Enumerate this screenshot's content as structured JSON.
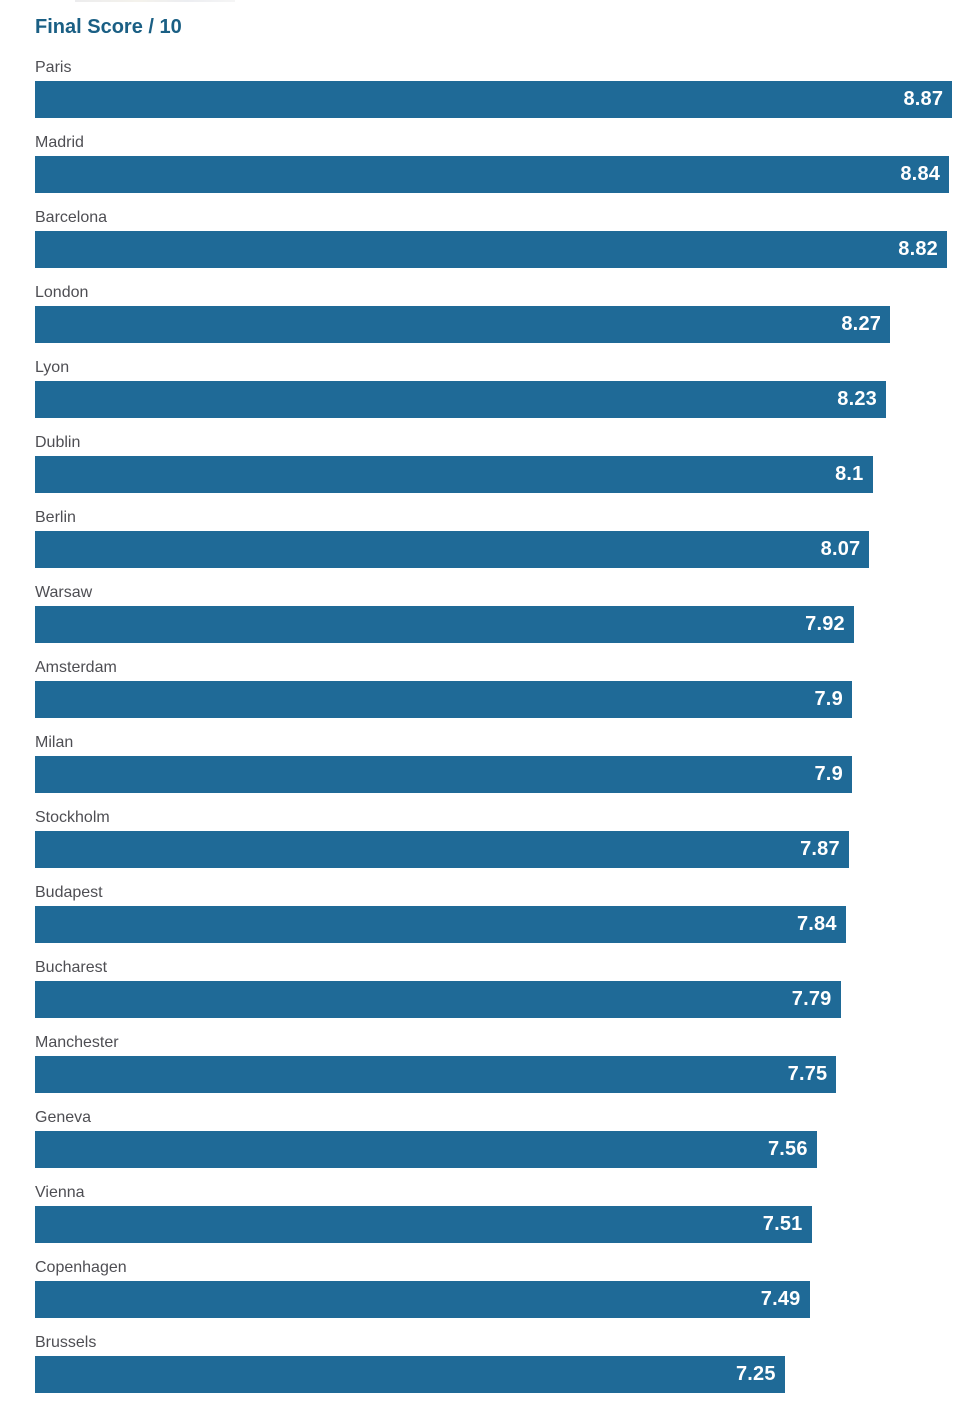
{
  "header": {
    "title": "Final Score / 10"
  },
  "chart_data": {
    "type": "bar",
    "orientation": "horizontal",
    "title": "Final Score / 10",
    "categories": [
      "Paris",
      "Madrid",
      "Barcelona",
      "London",
      "Lyon",
      "Dublin",
      "Berlin",
      "Warsaw",
      "Amsterdam",
      "Milan",
      "Stockholm",
      "Budapest",
      "Bucharest",
      "Manchester",
      "Geneva",
      "Vienna",
      "Copenhagen",
      "Brussels"
    ],
    "values": [
      8.87,
      8.84,
      8.82,
      8.27,
      8.23,
      8.1,
      8.07,
      7.92,
      7.9,
      7.9,
      7.87,
      7.84,
      7.79,
      7.75,
      7.56,
      7.51,
      7.49,
      7.25
    ],
    "value_labels": [
      "8.87",
      "8.84",
      "8.82",
      "8.27",
      "8.23",
      "8.1",
      "8.07",
      "7.92",
      "7.9",
      "7.9",
      "7.87",
      "7.84",
      "7.79",
      "7.75",
      "7.56",
      "7.51",
      "7.49",
      "7.25"
    ],
    "xlabel": "",
    "ylabel": "",
    "xlim": [
      0,
      10
    ],
    "grid": false,
    "legend": "none",
    "bar_color": "#1f6a97",
    "title_color": "#1a5f84",
    "category_label_color": "#4e4e53",
    "value_label_color": "#ffffff"
  }
}
